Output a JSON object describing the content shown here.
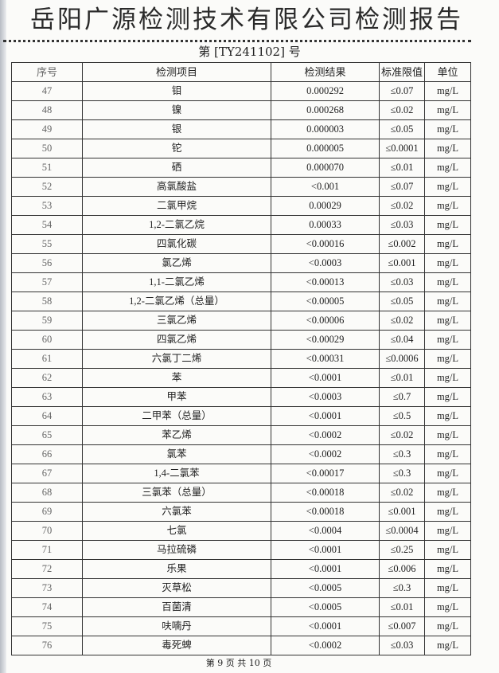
{
  "header": {
    "title": "岳阳广源检测技术有限公司检测报告",
    "report_no": "第 [TY241102] 号"
  },
  "table": {
    "columns": [
      "序号",
      "检测项目",
      "检测结果",
      "标准限值",
      "单位"
    ],
    "rows": [
      [
        "47",
        "钼",
        "0.000292",
        "≤0.07",
        "mg/L"
      ],
      [
        "48",
        "镍",
        "0.000268",
        "≤0.02",
        "mg/L"
      ],
      [
        "49",
        "银",
        "0.000003",
        "≤0.05",
        "mg/L"
      ],
      [
        "50",
        "铊",
        "0.000005",
        "≤0.0001",
        "mg/L"
      ],
      [
        "51",
        "硒",
        "0.000070",
        "≤0.01",
        "mg/L"
      ],
      [
        "52",
        "高氯酸盐",
        "<0.001",
        "≤0.07",
        "mg/L"
      ],
      [
        "53",
        "二氯甲烷",
        "0.00029",
        "≤0.02",
        "mg/L"
      ],
      [
        "54",
        "1,2-二氯乙烷",
        "0.00033",
        "≤0.03",
        "mg/L"
      ],
      [
        "55",
        "四氯化碳",
        "<0.00016",
        "≤0.002",
        "mg/L"
      ],
      [
        "56",
        "氯乙烯",
        "<0.0003",
        "≤0.001",
        "mg/L"
      ],
      [
        "57",
        "1,1-二氯乙烯",
        "<0.00013",
        "≤0.03",
        "mg/L"
      ],
      [
        "58",
        "1,2-二氯乙烯（总量）",
        "<0.00005",
        "≤0.05",
        "mg/L"
      ],
      [
        "59",
        "三氯乙烯",
        "<0.00006",
        "≤0.02",
        "mg/L"
      ],
      [
        "60",
        "四氯乙烯",
        "<0.00029",
        "≤0.04",
        "mg/L"
      ],
      [
        "61",
        "六氯丁二烯",
        "<0.00031",
        "≤0.0006",
        "mg/L"
      ],
      [
        "62",
        "苯",
        "<0.0001",
        "≤0.01",
        "mg/L"
      ],
      [
        "63",
        "甲苯",
        "<0.0003",
        "≤0.7",
        "mg/L"
      ],
      [
        "64",
        "二甲苯（总量）",
        "<0.0001",
        "≤0.5",
        "mg/L"
      ],
      [
        "65",
        "苯乙烯",
        "<0.0002",
        "≤0.02",
        "mg/L"
      ],
      [
        "66",
        "氯苯",
        "<0.0002",
        "≤0.3",
        "mg/L"
      ],
      [
        "67",
        "1,4-二氯苯",
        "<0.00017",
        "≤0.3",
        "mg/L"
      ],
      [
        "68",
        "三氯苯（总量）",
        "<0.00018",
        "≤0.02",
        "mg/L"
      ],
      [
        "69",
        "六氯苯",
        "<0.00018",
        "≤0.001",
        "mg/L"
      ],
      [
        "70",
        "七氯",
        "<0.0004",
        "≤0.0004",
        "mg/L"
      ],
      [
        "71",
        "马拉硫磷",
        "<0.0001",
        "≤0.25",
        "mg/L"
      ],
      [
        "72",
        "乐果",
        "<0.0001",
        "≤0.006",
        "mg/L"
      ],
      [
        "73",
        "灭草松",
        "<0.0005",
        "≤0.3",
        "mg/L"
      ],
      [
        "74",
        "百菌清",
        "<0.0005",
        "≤0.01",
        "mg/L"
      ],
      [
        "75",
        "呋喃丹",
        "<0.0001",
        "≤0.007",
        "mg/L"
      ],
      [
        "76",
        "毒死蜱",
        "<0.0002",
        "≤0.03",
        "mg/L"
      ]
    ]
  },
  "footer": {
    "page": "第 9 页  共 10 页"
  }
}
